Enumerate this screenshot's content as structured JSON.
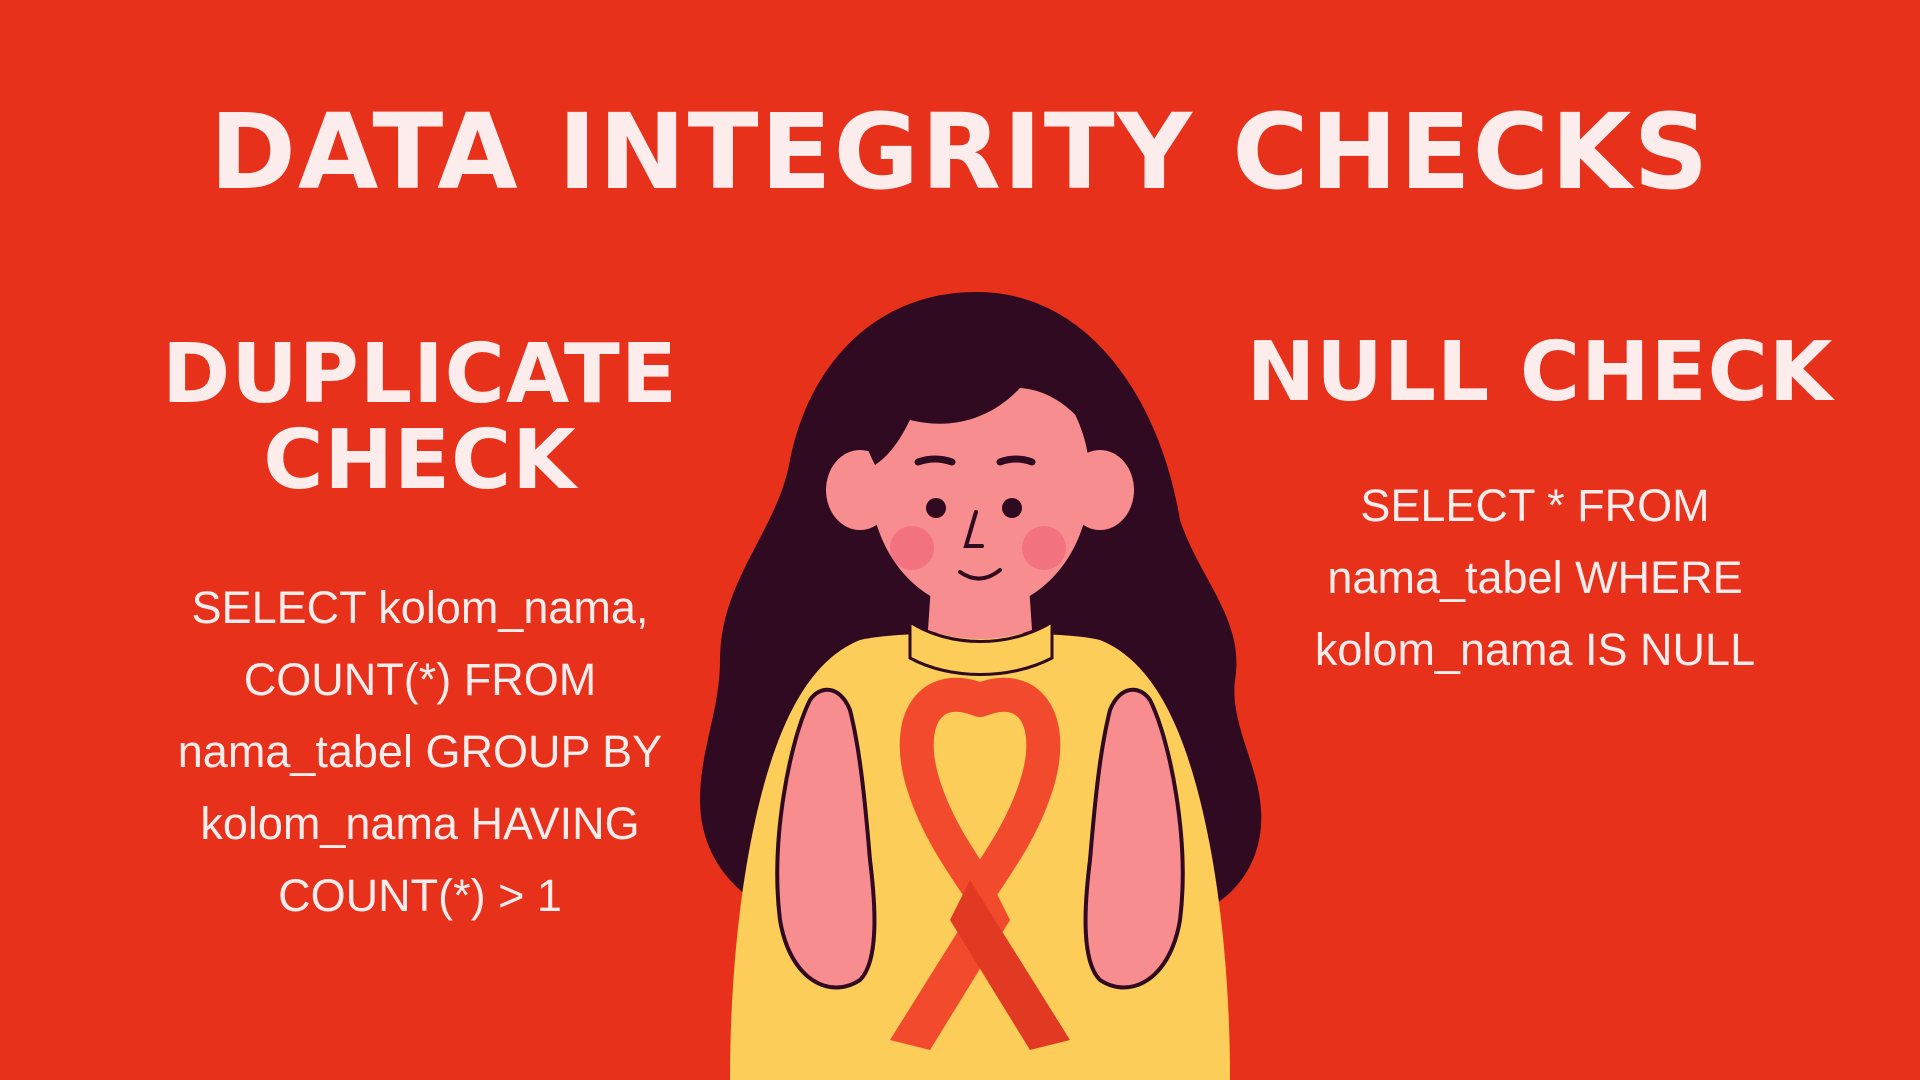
{
  "title": "DATA INTEGRITY CHECKS",
  "duplicate_check": {
    "heading": "DUPLICATE CHECK",
    "query": "SELECT kolom_nama, COUNT(*) FROM nama_tabel GROUP BY kolom_nama HAVING COUNT(*) > 1"
  },
  "null_check": {
    "heading": "NULL CHECK",
    "query": "SELECT * FROM nama_tabel WHERE kolom_nama IS NULL"
  },
  "colors": {
    "background": "#e8311b",
    "text": "#fdecec",
    "hair": "#300a20",
    "skin": "#f88d8f",
    "sweater": "#fdcd5a",
    "ribbon": "#f14a2d"
  },
  "illustration": {
    "icon": "woman-holding-awareness-ribbon-icon"
  }
}
